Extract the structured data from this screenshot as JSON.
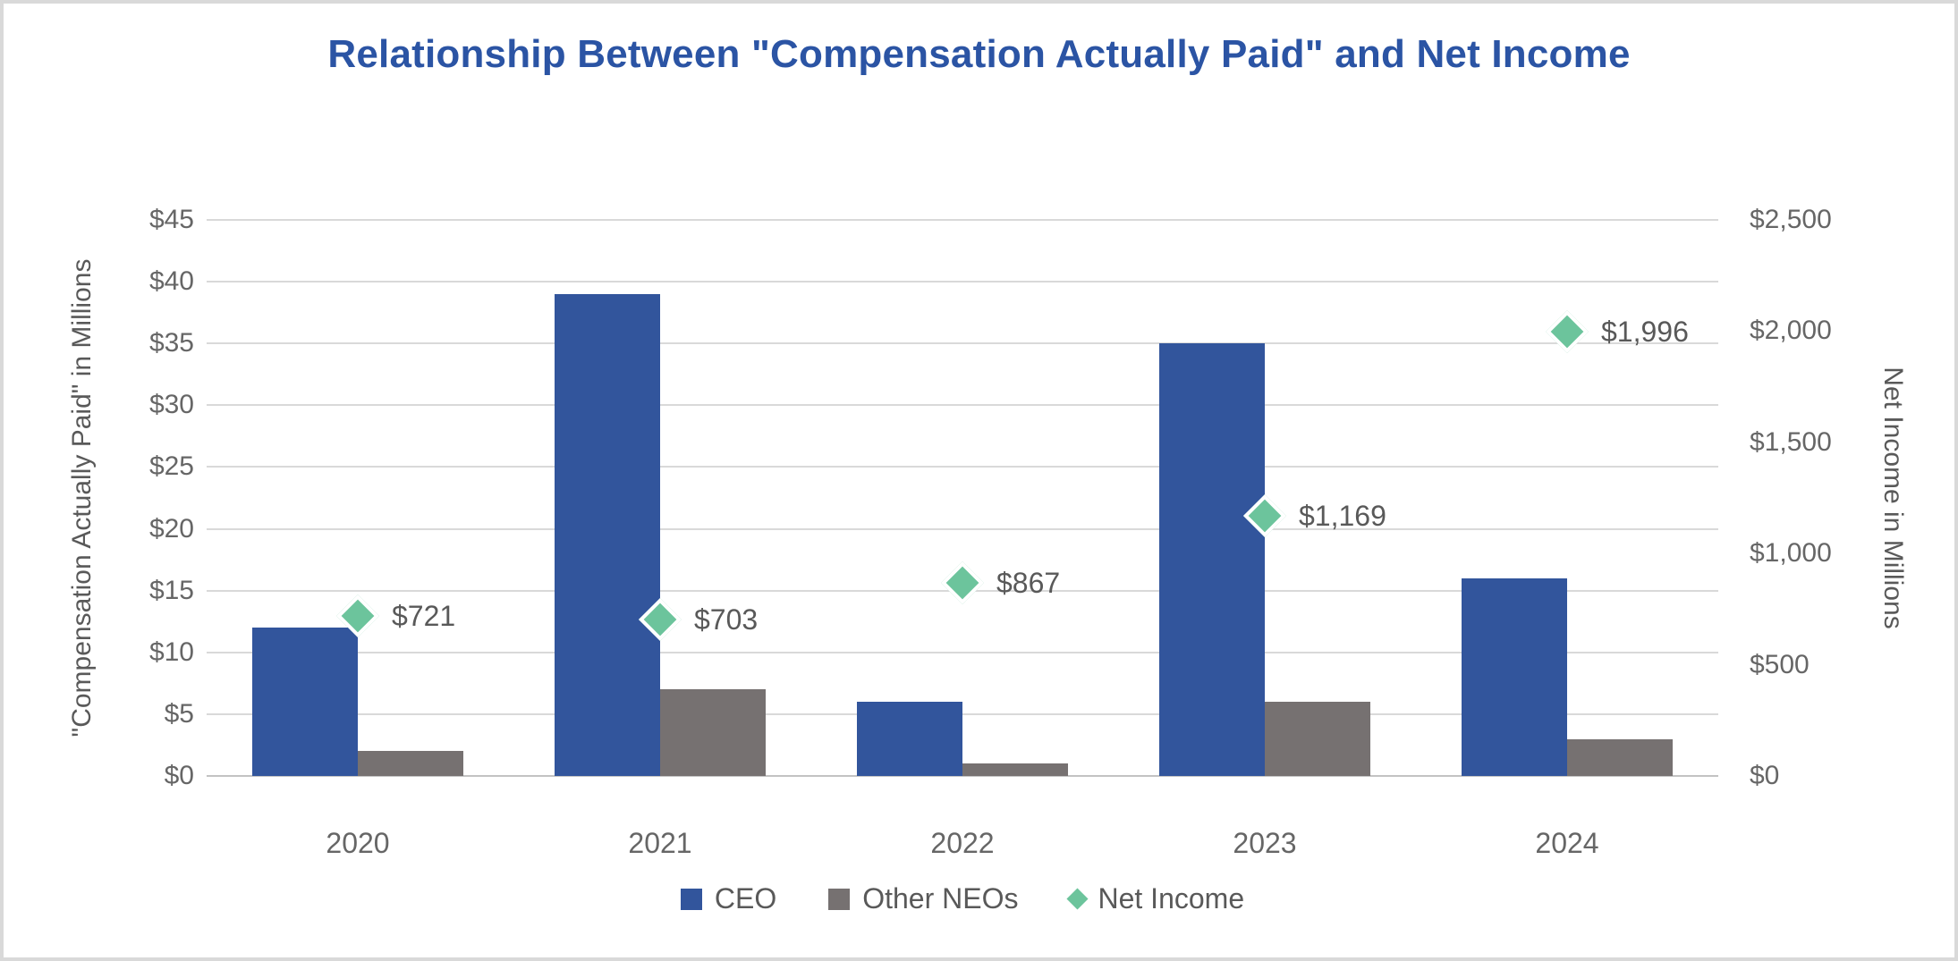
{
  "title": "Relationship Between \"Compensation Actually Paid\" and Net Income",
  "colors": {
    "title": "#2B54A4",
    "ceo_bar": "#32559C",
    "neo_bar": "#767171",
    "net_income_marker": "#6CC49C",
    "axis_text": "#666666",
    "label_text": "#595959",
    "gridline": "#D9D9D9"
  },
  "chart_data": {
    "type": "bar",
    "subtype": "grouped bars with scatter overlay on secondary axis",
    "categories": [
      "2020",
      "2021",
      "2022",
      "2023",
      "2024"
    ],
    "series": [
      {
        "name": "CEO",
        "type": "bar",
        "axis": "left",
        "values": [
          12,
          39,
          6,
          35,
          16
        ],
        "color": "#32559C"
      },
      {
        "name": "Other NEOs",
        "type": "bar",
        "axis": "left",
        "values": [
          2,
          7,
          1,
          6,
          3
        ],
        "color": "#767171"
      },
      {
        "name": "Net Income",
        "type": "scatter",
        "marker": "diamond",
        "axis": "right",
        "values": [
          721,
          703,
          867,
          1169,
          1996
        ],
        "labels": [
          "$721",
          "$703",
          "$867",
          "$1,169",
          "$1,996"
        ],
        "color": "#6CC49C"
      }
    ],
    "title": "Relationship Between \"Compensation Actually Paid\" and Net Income",
    "left_axis": {
      "title": "\"Compensation Actually Paid\" in Millions",
      "min": 0,
      "max": 45,
      "step": 5,
      "tick_labels": [
        "$0",
        "$5",
        "$10",
        "$15",
        "$20",
        "$25",
        "$30",
        "$35",
        "$40",
        "$45"
      ]
    },
    "right_axis": {
      "title": "Net Income in Millions",
      "min": 0,
      "max": 2500,
      "step": 500,
      "tick_labels": [
        "$0",
        "$500",
        "$1,000",
        "$1,500",
        "$2,000",
        "$2,500"
      ]
    },
    "grid": true,
    "legend_position": "bottom"
  }
}
